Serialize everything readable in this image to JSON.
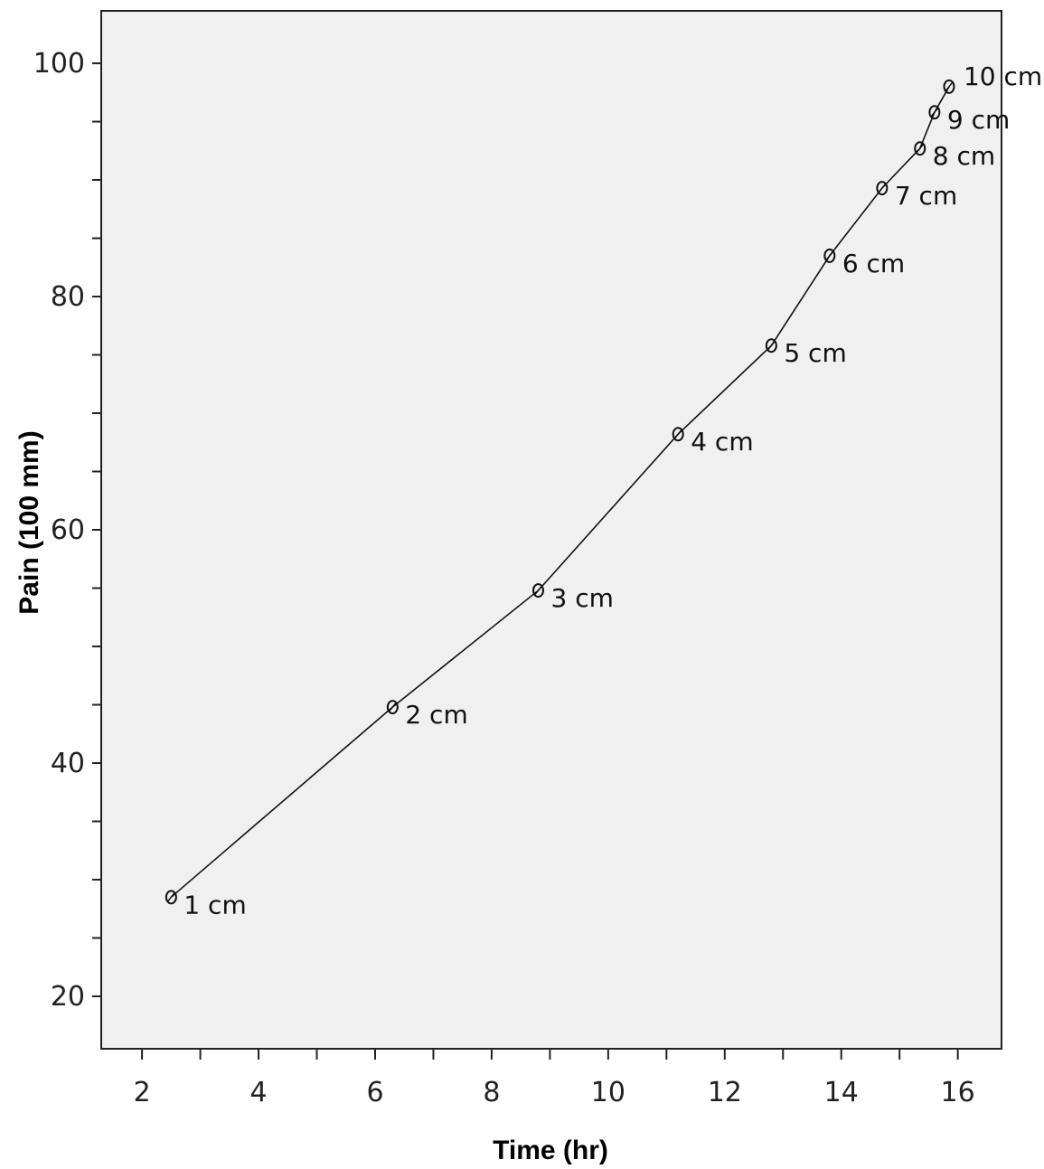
{
  "chart_data": {
    "type": "line",
    "title": "",
    "xlabel": "Time (hr)",
    "ylabel": "Pain (100 mm)",
    "xlim": [
      1.3,
      16.75
    ],
    "ylim": [
      15.5,
      104.5
    ],
    "x_ticks": [
      2,
      3,
      4,
      5,
      6,
      7,
      8,
      9,
      10,
      11,
      12,
      13,
      14,
      15,
      16
    ],
    "x_tick_labels": [
      {
        "value": 2,
        "label": "2"
      },
      {
        "value": 4,
        "label": "4"
      },
      {
        "value": 6,
        "label": "6"
      },
      {
        "value": 8,
        "label": "8"
      },
      {
        "value": 10,
        "label": "10"
      },
      {
        "value": 12,
        "label": "12"
      },
      {
        "value": 14,
        "label": "14"
      },
      {
        "value": 16,
        "label": "16"
      }
    ],
    "y_ticks": [
      20,
      25,
      30,
      35,
      40,
      45,
      50,
      55,
      60,
      65,
      70,
      75,
      80,
      85,
      90,
      95,
      100
    ],
    "y_tick_labels": [
      {
        "value": 20,
        "label": "20"
      },
      {
        "value": 40,
        "label": "40"
      },
      {
        "value": 60,
        "label": "60"
      },
      {
        "value": 80,
        "label": "80"
      },
      {
        "value": 100,
        "label": "100"
      }
    ],
    "grid": false,
    "legend": null,
    "colors": {
      "plot_background": "#f0f0f0",
      "line": "#111111",
      "frame": "#222222"
    },
    "series": [
      {
        "x": [
          2.5,
          6.3,
          8.8,
          11.2,
          12.8,
          13.8,
          14.7,
          15.35,
          15.6,
          15.85
        ],
        "y": [
          28.5,
          44.8,
          54.8,
          68.2,
          75.8,
          83.5,
          89.3,
          92.7,
          95.8,
          98.0
        ],
        "labels": [
          "1 cm",
          "2 cm",
          "3 cm",
          "4 cm",
          "5 cm",
          "6 cm",
          "7 cm",
          "8 cm",
          "9 cm",
          "10 cm"
        ]
      }
    ]
  }
}
